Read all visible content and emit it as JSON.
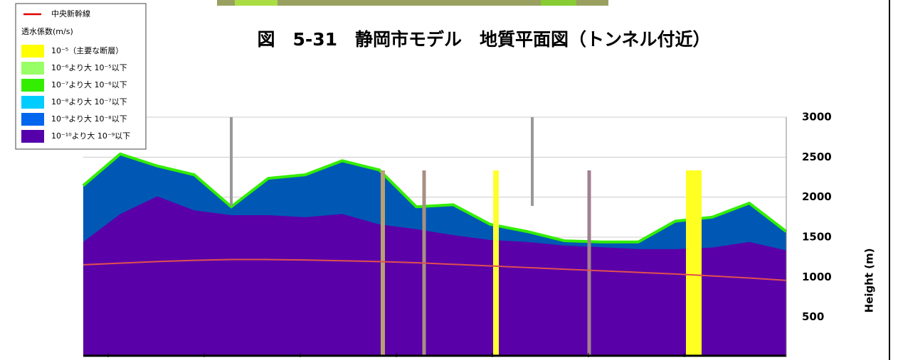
{
  "chart_data": {
    "type": "area",
    "title": "図　5-31　静岡市モデル　地質平面図（トンネル付近）",
    "y_label": "Height (m)",
    "legend": {
      "line_label": "中央新幹線",
      "heading": "透水係数(m/s)",
      "items": [
        {
          "label": "10⁻⁵（主要な断層）",
          "color": "#ffff00"
        },
        {
          "label": "10⁻⁶より大 10⁻⁵以下",
          "color": "#99ff66"
        },
        {
          "label": "10⁻⁷より大 10⁻⁶以下",
          "color": "#33ee00"
        },
        {
          "label": "10⁻⁸より大 10⁻⁷以下",
          "color": "#00ccff"
        },
        {
          "label": "10⁻⁹より大 10⁻⁸以下",
          "color": "#0066ee"
        },
        {
          "label": "10⁻¹⁰より大 10⁻⁹以下",
          "color": "#5500aa"
        }
      ],
      "corner": "top-left"
    },
    "categories": [
      null,
      null,
      null,
      null,
      null,
      null,
      null,
      null,
      null,
      null,
      null,
      null,
      null,
      null,
      null,
      null,
      null,
      null,
      null,
      null
    ],
    "series": [
      {
        "color": "#0058b4",
        "values": [
          2145,
          2540,
          2390,
          2280,
          1880,
          2235,
          2280,
          2455,
          2340,
          1880,
          1905,
          1660,
          1570,
          1455,
          1440,
          1440,
          1700,
          1750,
          1925,
          1570
        ]
      },
      {
        "color": "#5a00a8",
        "values": [
          1440,
          1790,
          2010,
          1835,
          1775,
          1775,
          1750,
          1790,
          1660,
          1600,
          1525,
          1465,
          1440,
          1395,
          1375,
          1350,
          1350,
          1370,
          1440,
          1335
        ]
      },
      {
        "color": "#e05050",
        "values": [
          1155,
          1175,
          1195,
          1210,
          1220,
          1220,
          1215,
          1205,
          1195,
          1180,
          1160,
          1140,
          1120,
          1100,
          1080,
          1060,
          1040,
          1015,
          990,
          960
        ]
      }
    ],
    "ylim": [
      0,
      3000
    ],
    "yticks": [
      500,
      1000,
      1500,
      2000,
      2500,
      3000
    ],
    "grid": true
  }
}
